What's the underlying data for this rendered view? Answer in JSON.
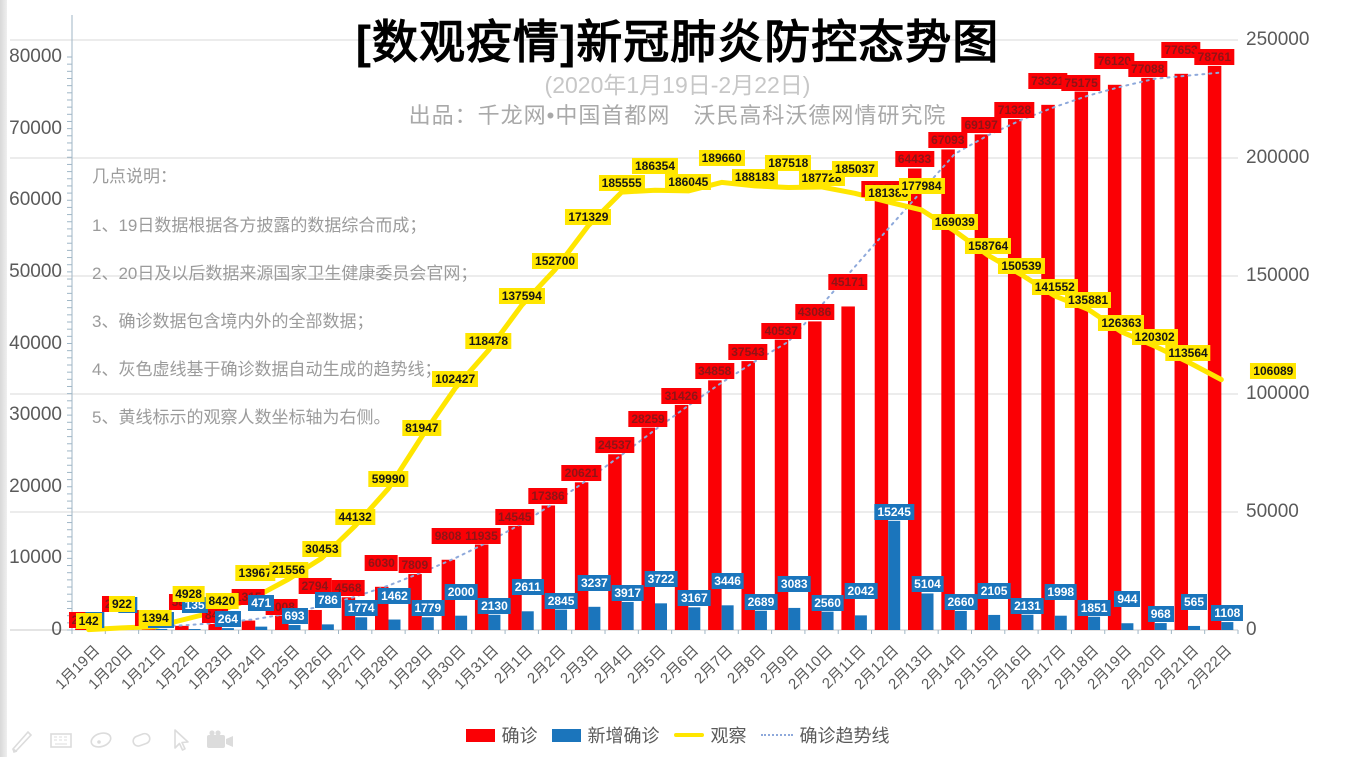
{
  "page": {
    "title": "[数观疫情]新冠肺炎防控态势图",
    "subtitle": "(2020年1月19日-2月22日)",
    "publisher": "出品：千龙网•中国首都网　沃民高科沃德网情研究院"
  },
  "notes": {
    "heading": "几点说明：",
    "items": [
      "1、19日数据根据各方披露的数据综合而成；",
      "2、20日及以后数据来源国家卫生健康委员会官网；",
      "3、确诊数据包含境内外的全部数据；",
      "4、灰色虚线基于确诊数据自动生成的趋势线；",
      "5、黄线标示的观察人数坐标轴为右侧。"
    ]
  },
  "legend": {
    "confirmed": "确诊",
    "new_confirmed": "新增确诊",
    "observation": "观察",
    "trend": "确诊趋势线"
  },
  "colors": {
    "confirmed": "#fb0005",
    "confirmed_label_text": "#8e1417",
    "new_confirmed": "#1b75bc",
    "observation": "#ffe600",
    "trend": "#8ea9db",
    "grid": "#d9d9d9",
    "axis_tick": "#9fb6c6",
    "axis_text": "#5a5a5a"
  },
  "toolbar": {
    "icons": [
      "pencil-icon",
      "keyboard-icon",
      "laser-pointer-icon",
      "eraser-icon",
      "cursor-icon",
      "camera-icon"
    ]
  },
  "chart_data": {
    "type": "bar",
    "title": "[数观疫情]新冠肺炎防控态势图",
    "subtitle": "(2020年1月19日-2月22日)",
    "grid": true,
    "legend_position": "bottom",
    "categories": [
      "1月19日",
      "1月20日",
      "1月21日",
      "1月22日",
      "1月23日",
      "1月24日",
      "1月25日",
      "1月26日",
      "1月27日",
      "1月28日",
      "1月29日",
      "1月30日",
      "1月31日",
      "2月1日",
      "2月2日",
      "2月3日",
      "2月4日",
      "2月5日",
      "2月6日",
      "2月7日",
      "2月8日",
      "2月9日",
      "2月10日",
      "2月11日",
      "2月12日",
      "2月13日",
      "2月14日",
      "2月15日",
      "2月16日",
      "2月17日",
      "2月18日",
      "2月19日",
      "2月20日",
      "2月21日",
      "2月22日"
    ],
    "series": [
      {
        "name": "确诊",
        "type": "bar",
        "axis": "left",
        "color": "#fb0005",
        "values": [
          204,
          295,
          446,
          580,
          844,
          1315,
          2008,
          2794,
          4568,
          6030,
          7809,
          9808,
          11935,
          14545,
          17386,
          20621,
          24537,
          28259,
          31426,
          34858,
          37543,
          40537,
          43086,
          45171,
          60372,
          64433,
          67093,
          69197,
          71328,
          73321,
          75175,
          76120,
          77088,
          77653,
          78761
        ]
      },
      {
        "name": "新增确诊",
        "type": "bar",
        "axis": "left",
        "color": "#1b75bc",
        "values": [
          79,
          93,
          150,
          135,
          264,
          471,
          693,
          786,
          1774,
          1462,
          1779,
          2000,
          2130,
          2611,
          2845,
          3237,
          3917,
          3722,
          3167,
          3446,
          2689,
          3083,
          2560,
          2042,
          15245,
          5104,
          2660,
          2105,
          2131,
          1998,
          1851,
          944,
          968,
          565,
          1108
        ]
      },
      {
        "name": "观察",
        "type": "line",
        "axis": "right",
        "color": "#ffe600",
        "values": [
          142,
          922,
          1394,
          4928,
          8420,
          13967,
          21556,
          30453,
          44132,
          59990,
          81947,
          102427,
          118478,
          137594,
          152700,
          171329,
          185555,
          186354,
          186045,
          189660,
          188183,
          187518,
          187728,
          185037,
          181386,
          177984,
          169039,
          158764,
          150539,
          141552,
          135881,
          126363,
          120302,
          113564,
          106089
        ]
      },
      {
        "name": "确诊趋势线",
        "type": "dotted-line",
        "axis": "left",
        "color": "#8ea9db",
        "derived_from": "确诊",
        "note": "灰色虚线为基于确诊数据自动生成的趋势线"
      }
    ],
    "axes": {
      "left": {
        "min": 0,
        "max": 80000,
        "step": 10000,
        "tick_labels": [
          "0",
          "10000",
          "20000",
          "30000",
          "40000",
          "50000",
          "60000",
          "70000",
          "80000"
        ]
      },
      "right": {
        "min": 0,
        "max": 250000,
        "step": 50000,
        "tick_labels": [
          "0",
          "50000",
          "100000",
          "150000",
          "200000",
          "250000"
        ]
      }
    }
  }
}
